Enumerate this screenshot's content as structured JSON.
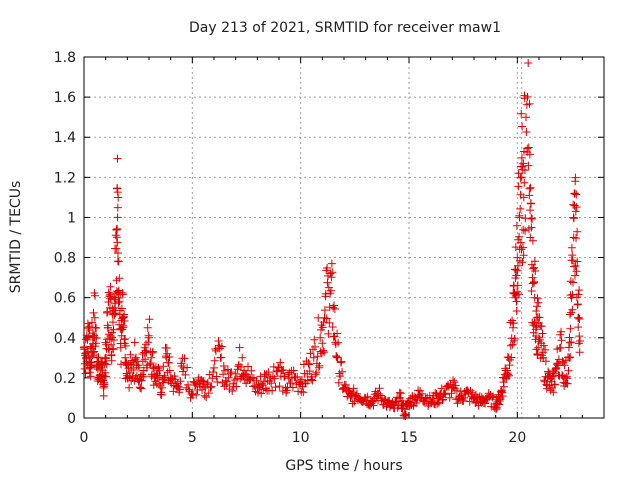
{
  "chart_data": {
    "type": "scatter",
    "title": "Day 213 of 2021, SRMTID for receiver maw1",
    "xlabel": "GPS time / hours",
    "ylabel": "SRMTID / TECUs",
    "xlim": [
      0,
      24
    ],
    "ylim": [
      0,
      1.8
    ],
    "xticks": [
      0,
      5,
      10,
      15,
      20
    ],
    "yticks": [
      0,
      0.2,
      0.4,
      0.6,
      0.8,
      1,
      1.2,
      1.4,
      1.6,
      1.8
    ],
    "xtick_labels": [
      "0",
      "5",
      "10",
      "15",
      "20"
    ],
    "ytick_labels": [
      "0",
      "0.2",
      "0.4",
      "0.6",
      "0.8",
      "1",
      "1.2",
      "1.4",
      "1.6",
      "1.8"
    ],
    "marker": "plus",
    "color": "#e00000",
    "grid": true,
    "series": [
      {
        "name": "SRMTID",
        "x": [
          0.0,
          0.1,
          0.2,
          0.3,
          0.4,
          0.5,
          0.6,
          0.7,
          0.8,
          0.9,
          1.0,
          1.1,
          1.2,
          1.3,
          1.4,
          1.5,
          1.55,
          1.6,
          1.7,
          1.8,
          1.9,
          2.0,
          2.2,
          2.4,
          2.6,
          2.8,
          3.0,
          3.2,
          3.4,
          3.6,
          3.8,
          4.0,
          4.3,
          4.6,
          5.0,
          5.3,
          5.6,
          6.0,
          6.3,
          6.6,
          7.0,
          7.3,
          7.6,
          8.0,
          8.3,
          8.6,
          9.0,
          9.3,
          9.6,
          10.0,
          10.3,
          10.6,
          10.9,
          11.1,
          11.3,
          11.5,
          11.7,
          12.0,
          12.3,
          12.6,
          13.0,
          13.3,
          13.6,
          14.0,
          14.3,
          14.6,
          14.8,
          15.0,
          15.3,
          15.6,
          16.0,
          16.3,
          16.6,
          17.0,
          17.3,
          17.6,
          18.0,
          18.3,
          18.6,
          19.0,
          19.2,
          19.4,
          19.6,
          19.8,
          19.9,
          20.0,
          20.1,
          20.2,
          20.3,
          20.4,
          20.5,
          20.6,
          20.7,
          20.8,
          20.9,
          21.0,
          21.2,
          21.4,
          21.6,
          21.8,
          22.0,
          22.2,
          22.4,
          22.5,
          22.6,
          22.7,
          22.8
        ],
        "y": [
          0.35,
          0.3,
          0.45,
          0.25,
          0.4,
          0.5,
          0.3,
          0.2,
          0.25,
          0.15,
          0.3,
          0.45,
          0.55,
          0.4,
          0.6,
          0.94,
          1.0,
          0.78,
          0.35,
          0.5,
          0.3,
          0.2,
          0.25,
          0.3,
          0.15,
          0.35,
          0.4,
          0.25,
          0.2,
          0.15,
          0.3,
          0.2,
          0.15,
          0.25,
          0.12,
          0.2,
          0.15,
          0.25,
          0.3,
          0.18,
          0.22,
          0.3,
          0.2,
          0.15,
          0.18,
          0.2,
          0.25,
          0.15,
          0.2,
          0.18,
          0.22,
          0.3,
          0.4,
          0.5,
          0.65,
          0.55,
          0.3,
          0.15,
          0.1,
          0.12,
          0.1,
          0.08,
          0.12,
          0.07,
          0.05,
          0.1,
          0.02,
          0.08,
          0.1,
          0.12,
          0.08,
          0.1,
          0.12,
          0.15,
          0.1,
          0.12,
          0.1,
          0.08,
          0.1,
          0.07,
          0.1,
          0.2,
          0.3,
          0.45,
          0.6,
          0.8,
          1.0,
          1.2,
          1.1,
          1.5,
          1.77,
          0.9,
          0.7,
          0.6,
          0.5,
          0.4,
          0.3,
          0.2,
          0.15,
          0.25,
          0.35,
          0.2,
          0.3,
          0.6,
          0.9,
          1.03,
          0.5
        ]
      }
    ]
  }
}
